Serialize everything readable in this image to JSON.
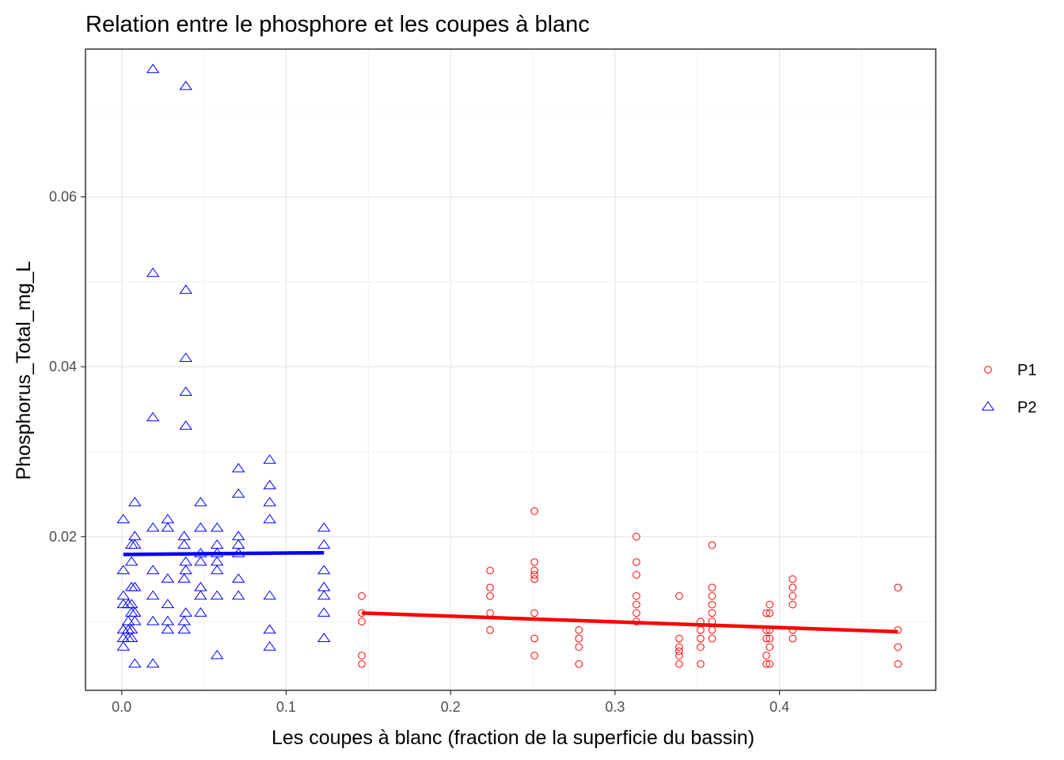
{
  "chart_data": {
    "type": "scatter",
    "title": "Relation entre le phosphore et les coupes à blanc",
    "xlabel": "Les coupes à blanc (fraction de la superficie du bassin)",
    "ylabel": "Phosphorus_Total_mg_L",
    "xlim": [
      -0.022,
      0.495
    ],
    "ylim": [
      0.0019,
      0.0774
    ],
    "x_ticks": [
      "0.0",
      "0.1",
      "0.2",
      "0.3",
      "0.4"
    ],
    "x_tick_values": [
      0.0,
      0.1,
      0.2,
      0.3,
      0.4
    ],
    "y_ticks": [
      "0.02",
      "0.04",
      "0.06"
    ],
    "y_tick_values": [
      0.02,
      0.04,
      0.06
    ],
    "grid": true,
    "legend_position": "right",
    "series": [
      {
        "name": "P1",
        "marker": "circle",
        "color": "#ff0000",
        "points": [
          [
            0.146,
            0.013
          ],
          [
            0.146,
            0.011
          ],
          [
            0.146,
            0.01
          ],
          [
            0.146,
            0.006
          ],
          [
            0.146,
            0.005
          ],
          [
            0.224,
            0.016
          ],
          [
            0.224,
            0.014
          ],
          [
            0.224,
            0.013
          ],
          [
            0.224,
            0.011
          ],
          [
            0.224,
            0.009
          ],
          [
            0.251,
            0.023
          ],
          [
            0.251,
            0.017
          ],
          [
            0.251,
            0.016
          ],
          [
            0.251,
            0.0155
          ],
          [
            0.251,
            0.015
          ],
          [
            0.251,
            0.011
          ],
          [
            0.251,
            0.008
          ],
          [
            0.251,
            0.006
          ],
          [
            0.278,
            0.009
          ],
          [
            0.278,
            0.008
          ],
          [
            0.278,
            0.007
          ],
          [
            0.278,
            0.005
          ],
          [
            0.313,
            0.02
          ],
          [
            0.313,
            0.017
          ],
          [
            0.313,
            0.0155
          ],
          [
            0.313,
            0.013
          ],
          [
            0.313,
            0.012
          ],
          [
            0.313,
            0.011
          ],
          [
            0.313,
            0.01
          ],
          [
            0.339,
            0.013
          ],
          [
            0.339,
            0.008
          ],
          [
            0.339,
            0.007
          ],
          [
            0.339,
            0.0065
          ],
          [
            0.339,
            0.006
          ],
          [
            0.339,
            0.005
          ],
          [
            0.352,
            0.01
          ],
          [
            0.352,
            0.009
          ],
          [
            0.352,
            0.008
          ],
          [
            0.352,
            0.007
          ],
          [
            0.352,
            0.005
          ],
          [
            0.359,
            0.019
          ],
          [
            0.359,
            0.014
          ],
          [
            0.359,
            0.013
          ],
          [
            0.359,
            0.012
          ],
          [
            0.359,
            0.011
          ],
          [
            0.359,
            0.01
          ],
          [
            0.359,
            0.009
          ],
          [
            0.359,
            0.008
          ],
          [
            0.392,
            0.011
          ],
          [
            0.392,
            0.009
          ],
          [
            0.392,
            0.008
          ],
          [
            0.392,
            0.006
          ],
          [
            0.392,
            0.005
          ],
          [
            0.394,
            0.012
          ],
          [
            0.394,
            0.011
          ],
          [
            0.394,
            0.009
          ],
          [
            0.394,
            0.008
          ],
          [
            0.394,
            0.007
          ],
          [
            0.394,
            0.005
          ],
          [
            0.408,
            0.015
          ],
          [
            0.408,
            0.014
          ],
          [
            0.408,
            0.013
          ],
          [
            0.408,
            0.012
          ],
          [
            0.408,
            0.009
          ],
          [
            0.408,
            0.008
          ],
          [
            0.472,
            0.014
          ],
          [
            0.472,
            0.009
          ],
          [
            0.472,
            0.007
          ],
          [
            0.472,
            0.005
          ]
        ],
        "trend": {
          "x": [
            0.146,
            0.472
          ],
          "y": [
            0.011,
            0.0088
          ]
        }
      },
      {
        "name": "P2",
        "marker": "triangle",
        "color": "#0000ff",
        "points": [
          [
            0.001,
            0.022
          ],
          [
            0.001,
            0.016
          ],
          [
            0.001,
            0.013
          ],
          [
            0.001,
            0.012
          ],
          [
            0.001,
            0.009
          ],
          [
            0.001,
            0.008
          ],
          [
            0.001,
            0.007
          ],
          [
            0.004,
            0.012
          ],
          [
            0.004,
            0.01
          ],
          [
            0.004,
            0.009
          ],
          [
            0.004,
            0.008
          ],
          [
            0.006,
            0.019
          ],
          [
            0.006,
            0.017
          ],
          [
            0.006,
            0.014
          ],
          [
            0.006,
            0.012
          ],
          [
            0.006,
            0.011
          ],
          [
            0.006,
            0.009
          ],
          [
            0.006,
            0.008
          ],
          [
            0.008,
            0.024
          ],
          [
            0.008,
            0.02
          ],
          [
            0.008,
            0.019
          ],
          [
            0.008,
            0.014
          ],
          [
            0.008,
            0.011
          ],
          [
            0.008,
            0.01
          ],
          [
            0.008,
            0.005
          ],
          [
            0.019,
            0.075
          ],
          [
            0.019,
            0.051
          ],
          [
            0.019,
            0.034
          ],
          [
            0.019,
            0.021
          ],
          [
            0.019,
            0.016
          ],
          [
            0.019,
            0.013
          ],
          [
            0.019,
            0.01
          ],
          [
            0.019,
            0.005
          ],
          [
            0.028,
            0.022
          ],
          [
            0.028,
            0.021
          ],
          [
            0.028,
            0.015
          ],
          [
            0.028,
            0.012
          ],
          [
            0.028,
            0.01
          ],
          [
            0.028,
            0.009
          ],
          [
            0.039,
            0.073
          ],
          [
            0.039,
            0.049
          ],
          [
            0.039,
            0.041
          ],
          [
            0.039,
            0.037
          ],
          [
            0.039,
            0.033
          ],
          [
            0.038,
            0.02
          ],
          [
            0.038,
            0.019
          ],
          [
            0.039,
            0.017
          ],
          [
            0.039,
            0.016
          ],
          [
            0.038,
            0.015
          ],
          [
            0.039,
            0.011
          ],
          [
            0.038,
            0.01
          ],
          [
            0.038,
            0.009
          ],
          [
            0.048,
            0.024
          ],
          [
            0.048,
            0.021
          ],
          [
            0.048,
            0.018
          ],
          [
            0.048,
            0.017
          ],
          [
            0.048,
            0.014
          ],
          [
            0.048,
            0.013
          ],
          [
            0.048,
            0.011
          ],
          [
            0.058,
            0.021
          ],
          [
            0.058,
            0.019
          ],
          [
            0.058,
            0.018
          ],
          [
            0.058,
            0.017
          ],
          [
            0.058,
            0.016
          ],
          [
            0.058,
            0.013
          ],
          [
            0.058,
            0.006
          ],
          [
            0.071,
            0.028
          ],
          [
            0.071,
            0.025
          ],
          [
            0.071,
            0.02
          ],
          [
            0.071,
            0.019
          ],
          [
            0.071,
            0.018
          ],
          [
            0.071,
            0.015
          ],
          [
            0.071,
            0.013
          ],
          [
            0.09,
            0.029
          ],
          [
            0.09,
            0.026
          ],
          [
            0.09,
            0.024
          ],
          [
            0.09,
            0.022
          ],
          [
            0.09,
            0.013
          ],
          [
            0.09,
            0.009
          ],
          [
            0.09,
            0.007
          ],
          [
            0.123,
            0.021
          ],
          [
            0.123,
            0.019
          ],
          [
            0.123,
            0.016
          ],
          [
            0.123,
            0.014
          ],
          [
            0.123,
            0.013
          ],
          [
            0.123,
            0.011
          ],
          [
            0.123,
            0.008
          ]
        ],
        "trend": {
          "x": [
            0.001,
            0.123
          ],
          "y": [
            0.0179,
            0.0181
          ]
        }
      }
    ]
  }
}
